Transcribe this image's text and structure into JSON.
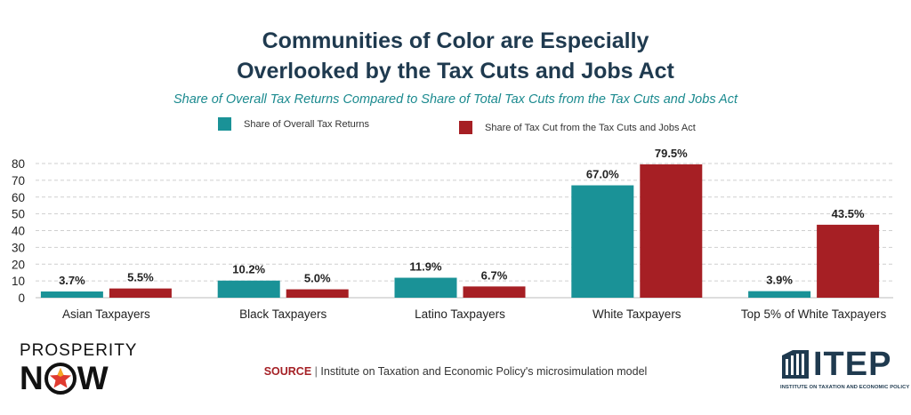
{
  "title_line1": "Communities of Color are Especially",
  "title_line2": "Overlooked by the Tax Cuts and Jobs Act",
  "subtitle": "Share of Overall Tax Returns Compared to Share of Total Tax Cuts from the Tax Cuts and Jobs Act",
  "colors": {
    "teal": "#1a9297",
    "red": "#a61f24",
    "title": "#1f3a4f",
    "subtitle": "#1b8a8f"
  },
  "chart_data": {
    "type": "bar",
    "title": "Communities of Color are Especially Overlooked by the Tax Cuts and Jobs Act",
    "categories": [
      "Asian Taxpayers",
      "Black Taxpayers",
      "Latino Taxpayers",
      "White Taxpayers",
      "Top 5% of White Taxpayers"
    ],
    "series": [
      {
        "name": "Share of Overall Tax Returns",
        "color": "#1a9297",
        "values": [
          3.7,
          10.2,
          11.9,
          67.0,
          3.9
        ],
        "labels": [
          "3.7%",
          "10.2%",
          "11.9%",
          "67.0%",
          "3.9%"
        ]
      },
      {
        "name": "Share of Tax Cut from the Tax Cuts and Jobs Act",
        "color": "#a61f24",
        "values": [
          5.5,
          5.0,
          6.7,
          79.5,
          43.5
        ],
        "labels": [
          "5.5%",
          "5.0%",
          "6.7%",
          "79.5%",
          "43.5%"
        ]
      }
    ],
    "yticks": [
      "0",
      "10",
      "20",
      "30",
      "40",
      "50",
      "60",
      "70",
      "80"
    ],
    "ylim": [
      0,
      80
    ],
    "grid": true,
    "legend": "top-center",
    "xlabel": "",
    "ylabel": ""
  },
  "footer": {
    "source_label": "SOURCE",
    "source_separator": "|",
    "source_text": "Institute on Taxation and Economic Policy's microsimulation model"
  },
  "logos": {
    "prosperity_top": "PROSPERITY",
    "prosperity_n": "N",
    "prosperity_w": "W",
    "itep_word": "ITEP",
    "itep_sub": "INSTITUTE ON TAXATION AND ECONOMIC POLICY"
  }
}
